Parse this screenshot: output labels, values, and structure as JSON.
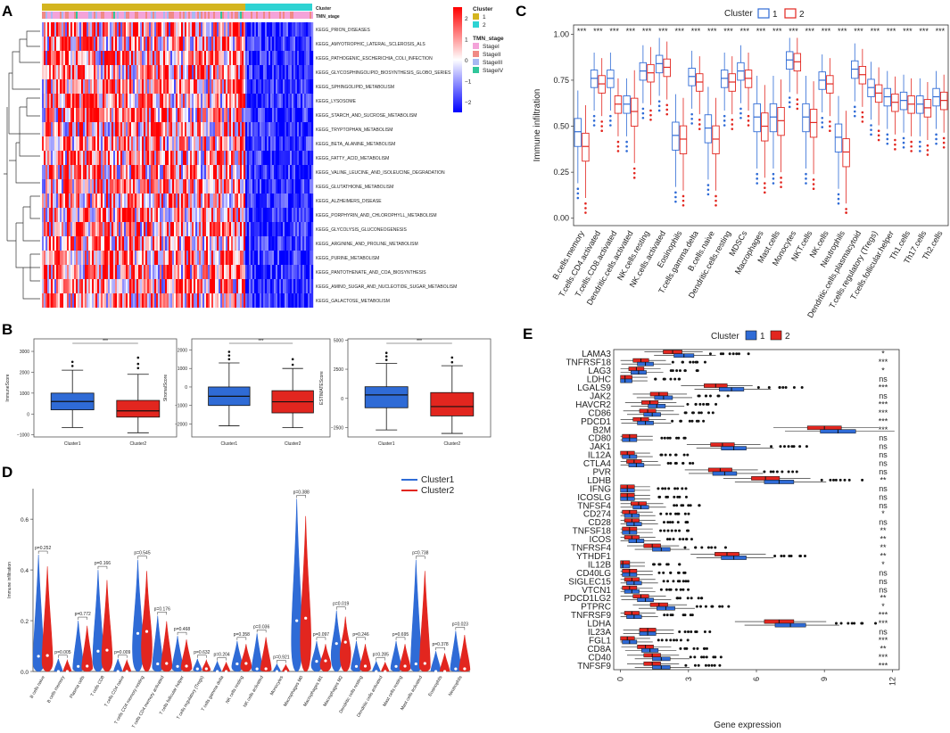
{
  "panel_labels": [
    "A",
    "B",
    "C",
    "D",
    "E"
  ],
  "colors": {
    "cluster1_blue": "#2f6bd6",
    "cluster2_red": "#e2261f",
    "gold": "#d4b51f",
    "cyan": "#2ed3d3"
  },
  "chart_data": [
    {
      "id": "A",
      "type": "heatmap",
      "title": "",
      "annotation_rows": [
        "Cluster",
        "TMN_stage"
      ],
      "rows": [
        "KEGG_PRION_DISEASES",
        "KEGG_AMYOTROPHIC_LATERAL_SCLEROSIS_ALS",
        "KEGG_PATHOGENIC_ESCHERICHIA_COLI_INFECTION",
        "KEGG_GLYCOSPHINGOLIPID_BIOSYNTHESIS_GLOBO_SERIES",
        "KEGG_SPHINGOLIPID_METABOLISM",
        "KEGG_LYSOSOME",
        "KEGG_STARCH_AND_SUCROSE_METABOLISM",
        "KEGG_TRYPTOPHAN_METABOLISM",
        "KEGG_BETA_ALANINE_METABOLISM",
        "KEGG_FATTY_ACID_METABOLISM",
        "KEGG_VALINE_LEUCINE_AND_ISOLEUCINE_DEGRADATION",
        "KEGG_GLUTATHIONE_METABOLISM",
        "KEGG_ALZHEIMERS_DISEASE",
        "KEGG_PORPHYRIN_AND_CHLOROPHYLL_METABOLISM",
        "KEGG_GLYCOLYSIS_GLUCONEOGENESIS",
        "KEGG_ARGININE_AND_PROLINE_METABOLISM",
        "KEGG_PURINE_METABOLISM",
        "KEGG_PANTOTHENATE_AND_COA_BIOSYNTHESIS",
        "KEGG_AMINO_SUGAR_AND_NUCLEOTIDE_SUGAR_METABOLISM",
        "KEGG_GALACTOSE_METABOLISM"
      ],
      "legend_cluster_title": "Cluster",
      "legend_cluster": [
        "1",
        "2"
      ],
      "legend_stage_title": "TMN_stage",
      "legend_stage": [
        "StageI",
        "StageII",
        "StageIII",
        "StageIV"
      ],
      "scale_ticks": [
        "2",
        "1",
        "0",
        "−1",
        "−2"
      ],
      "scale_range": [
        -2.5,
        2.5
      ]
    },
    {
      "id": "B",
      "type": "box",
      "categories": [
        "Cluster1",
        "Cluster2"
      ],
      "sig_label": "***",
      "plots": [
        {
          "ylabel": "ImmuneScore",
          "ylim": [
            -1100,
            3600
          ],
          "ticks": [
            "3000",
            "2000",
            "1000",
            "0",
            "−1000"
          ],
          "tick_values": [
            3000,
            2000,
            1000,
            0,
            -1000
          ],
          "boxes": [
            {
              "min": -650,
              "q1": 200,
              "med": 600,
              "q3": 1000,
              "max": 2100,
              "out": [
                2300,
                2500
              ]
            },
            {
              "min": -900,
              "q1": -150,
              "med": 150,
              "q3": 650,
              "max": 1900,
              "out": [
                2200,
                2400,
                2700
              ]
            }
          ]
        },
        {
          "ylabel": "StromalScore",
          "ylim": [
            -2700,
            2600
          ],
          "ticks": [
            "2000",
            "1000",
            "0",
            "−1000",
            "−2000"
          ],
          "tick_values": [
            2000,
            1000,
            0,
            -1000,
            -2000
          ],
          "boxes": [
            {
              "min": -2100,
              "q1": -1000,
              "med": -500,
              "q3": 0,
              "max": 1300,
              "out": [
                1500,
                1700,
                1900
              ]
            },
            {
              "min": -2200,
              "q1": -1400,
              "med": -800,
              "q3": -200,
              "max": 1000,
              "out": [
                1200,
                1500
              ]
            }
          ]
        },
        {
          "ylabel": "ESTIMATEScore",
          "ylim": [
            -3300,
            5100
          ],
          "ticks": [
            "5000",
            "2500",
            "0",
            "−2500"
          ],
          "tick_values": [
            5000,
            2500,
            0,
            -2500
          ],
          "boxes": [
            {
              "min": -2700,
              "q1": -800,
              "med": 300,
              "q3": 1000,
              "max": 3000,
              "out": [
                3300,
                3600,
                3900
              ]
            },
            {
              "min": -3000,
              "q1": -1500,
              "med": -700,
              "q3": 500,
              "max": 2800,
              "out": [
                3100,
                3500
              ]
            }
          ]
        }
      ]
    },
    {
      "id": "C",
      "type": "box",
      "legend_title": "Cluster",
      "legend": [
        "1",
        "2"
      ],
      "ylabel": "Immune infiltration",
      "ylim": [
        -0.04,
        1.05
      ],
      "ticks": [
        "0.00",
        "0.25",
        "0.50",
        "0.75",
        "1.00"
      ],
      "tick_values": [
        0,
        0.25,
        0.5,
        0.75,
        1.0
      ],
      "categories": [
        "B.cells.memory",
        "T.cells.CD4.activated",
        "T.cells.CD8.activated",
        "Dendritic.cells.activated",
        "NK.cells.resting",
        "NK.cells.activated",
        "Eosinophils",
        "T.cells.gamma.delta",
        "B.cells.naive",
        "Dendritic.cells.resting",
        "MDSCs",
        "Macrophages",
        "Mast.cells",
        "Monocytes",
        "NKT.cells",
        "NK.cells",
        "Neutrophils",
        "Dendritic.cells.plasmacytoid",
        "T.cells.regulatory (Tregs)",
        "T.cells.follicular.helper",
        "Th1.cells",
        "Th17.cells",
        "Th2.cells"
      ],
      "sig": [
        "***",
        "***",
        "***",
        "***",
        "***",
        "***",
        "***",
        "***",
        "***",
        "***",
        "***",
        "***",
        "***",
        "***",
        "***",
        "***",
        "***",
        "***",
        "***",
        "***",
        "***",
        "***",
        "***"
      ],
      "series": [
        {
          "name": "1",
          "medians": [
            0.47,
            0.76,
            0.76,
            0.62,
            0.8,
            0.84,
            0.45,
            0.77,
            0.49,
            0.76,
            0.8,
            0.55,
            0.55,
            0.86,
            0.55,
            0.75,
            0.44,
            0.81,
            0.71,
            0.66,
            0.64,
            0.62,
            0.66
          ]
        },
        {
          "name": "2",
          "medians": [
            0.39,
            0.73,
            0.62,
            0.58,
            0.79,
            0.82,
            0.43,
            0.74,
            0.43,
            0.74,
            0.76,
            0.5,
            0.53,
            0.85,
            0.52,
            0.73,
            0.36,
            0.78,
            0.68,
            0.63,
            0.62,
            0.6,
            0.64
          ]
        }
      ]
    },
    {
      "id": "D",
      "type": "violin",
      "legend": [
        "Cluster1",
        "Cluster2"
      ],
      "ylabel": "Immune infiltration",
      "ylim": [
        0,
        0.72
      ],
      "ticks": [
        "0.6",
        "0.4",
        "0.2",
        "0.0"
      ],
      "tick_values": [
        0.6,
        0.4,
        0.2,
        0.0
      ],
      "categories": [
        "B cells naive",
        "B cells memory",
        "Plasma cells",
        "T cells CD8",
        "T cells CD4 naive",
        "T cells CD4 memory resting",
        "T cells CD4 memory activated",
        "T cells follicular helper",
        "T cells regulatory (Tregs)",
        "T cells gamma delta",
        "NK cells resting",
        "NK cells activated",
        "Monocytes",
        "Macrophages M0",
        "Macrophages M1",
        "Macrophages M2",
        "Dendritic cells resting",
        "Dendritic cells activated",
        "Mast cells resting",
        "Mast cells activated",
        "Eosinophils",
        "Neutrophils"
      ],
      "pvalues": [
        "p=0.252",
        "p=0.005",
        "p=0.772",
        "p=0.166",
        "p=0.009",
        "p=0.545",
        "p=0.176",
        "p=0.468",
        "p=0.632",
        "p=0.204",
        "p=0.358",
        "p=0.036",
        "p=0.921",
        "p=0.388",
        "p=0.097",
        "p=0.019",
        "p=0.246",
        "p=0.285",
        "p=0.695",
        "p=0.738",
        "p=0.378",
        "p=0.023"
      ],
      "max_values": [
        0.46,
        0.05,
        0.2,
        0.4,
        0.05,
        0.44,
        0.22,
        0.14,
        0.05,
        0.04,
        0.12,
        0.15,
        0.03,
        0.68,
        0.12,
        0.24,
        0.12,
        0.04,
        0.12,
        0.44,
        0.08,
        0.16
      ],
      "medians": [
        0.06,
        0.0,
        0.02,
        0.08,
        0.0,
        0.15,
        0.03,
        0.02,
        0.01,
        0.0,
        0.03,
        0.01,
        0.0,
        0.2,
        0.04,
        0.11,
        0.02,
        0.0,
        0.02,
        0.03,
        0.0,
        0.01
      ]
    },
    {
      "id": "E",
      "type": "box",
      "legend_title": "Cluster",
      "legend": [
        "1",
        "2"
      ],
      "xlabel": "Gene expression",
      "xlim": [
        -0.3,
        12.3
      ],
      "ticks": [
        "0",
        "3",
        "6",
        "9",
        "12"
      ],
      "tick_values": [
        0,
        3,
        6,
        9,
        12
      ],
      "categories": [
        "LAMA3",
        "TNFRSF18",
        "LAG3",
        "LDHC",
        "LGALS9",
        "JAK2",
        "HAVCR2",
        "CD86",
        "PDCD1",
        "B2M",
        "CD80",
        "JAK1",
        "IL12A",
        "CTLA4",
        "PVR",
        "LDHB",
        "IFNG",
        "ICOSLG",
        "TNFSF4",
        "CD274",
        "CD28",
        "TNFSF18",
        "ICOS",
        "TNFRSF4",
        "YTHDF1",
        "IL12B",
        "CD40LG",
        "SIGLEC15",
        "VTCN1",
        "PDCD1LG2",
        "PTPRC",
        "TNFRSF9",
        "LDHA",
        "IL23A",
        "FGL1",
        "CD8A",
        "CD40",
        "TNFSF9"
      ],
      "sig": [
        "*",
        "***",
        "*",
        "ns",
        "***",
        "ns",
        "***",
        "***",
        "***",
        "***",
        "ns",
        "ns",
        "ns",
        "ns",
        "ns",
        "**",
        "ns",
        "ns",
        "ns",
        "*",
        "ns",
        "**",
        "**",
        "**",
        "**",
        "*",
        "ns",
        "ns",
        "ns",
        "**",
        "*",
        "***",
        "***",
        "ns",
        "***",
        "**",
        "***",
        "***"
      ],
      "series": [
        {
          "name": "1",
          "medians": [
            2.8,
            1.1,
            0.8,
            0.2,
            4.9,
            1.9,
            1.6,
            1.4,
            1.1,
            9.6,
            0.4,
            5.0,
            0.4,
            0.7,
            4.6,
            7.0,
            0.3,
            0.3,
            0.9,
            0.5,
            0.6,
            0.4,
            0.7,
            1.8,
            5.0,
            0.1,
            0.4,
            0.6,
            0.5,
            1.1,
            2.0,
            0.6,
            7.5,
            1.2,
            0.4,
            1.3,
            1.8,
            1.8
          ]
        },
        {
          "name": "2",
          "medians": [
            2.3,
            0.9,
            0.7,
            0.2,
            4.2,
            1.7,
            1.3,
            1.2,
            0.9,
            9.0,
            0.4,
            4.5,
            0.3,
            0.6,
            4.4,
            6.4,
            0.3,
            0.3,
            0.8,
            0.4,
            0.5,
            0.4,
            0.5,
            1.4,
            4.7,
            0.1,
            0.4,
            0.5,
            0.4,
            0.9,
            1.7,
            0.5,
            7.0,
            1.2,
            0.3,
            1.1,
            1.4,
            1.4
          ]
        }
      ]
    }
  ]
}
